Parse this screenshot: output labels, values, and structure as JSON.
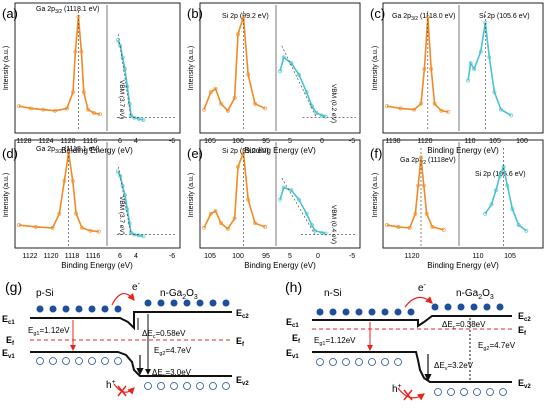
{
  "chart_data": [
    {
      "type": "line",
      "panel": "(a)",
      "xlabel": "Binding Energy (eV)",
      "ylabel": "Intensity (a.u.)",
      "segments": [
        {
          "xlim": [
            1128,
            1114
          ],
          "ticks": [
            1128,
            1124,
            1120,
            1116
          ],
          "peak_label": "Ga 2p3/2 (1118.1 eV)",
          "peak_x": 1118.1,
          "data": [
            [
              1128,
              0.18
            ],
            [
              1126,
              0.16
            ],
            [
              1124,
              0.15
            ],
            [
              1122,
              0.14
            ],
            [
              1120,
              0.16
            ],
            [
              1119,
              0.3
            ],
            [
              1118.6,
              0.65
            ],
            [
              1118.1,
              0.95
            ],
            [
              1117.6,
              0.65
            ],
            [
              1117.2,
              0.3
            ],
            [
              1116.5,
              0.15
            ],
            [
              1115.5,
              0.12
            ],
            [
              1114.5,
              0.11
            ]
          ]
        },
        {
          "xlim": [
            8,
            -6
          ],
          "ticks": [
            6,
            4,
            2,
            0,
            -2,
            -4,
            -6
          ],
          "shown_ticks": [
            "6",
            "4",
            "-6"
          ],
          "vbm_label": "VBM (3.7 eV)",
          "vbm_x": 3.7,
          "data": [
            [
              6.5,
              0.75
            ],
            [
              6,
              0.7
            ],
            [
              5.5,
              0.6
            ],
            [
              5,
              0.5
            ],
            [
              4.5,
              0.35
            ],
            [
              4,
              0.2
            ],
            [
              3.7,
              0.1
            ],
            [
              3,
              0.08
            ],
            [
              2,
              0.07
            ],
            [
              1,
              0.06
            ]
          ]
        }
      ]
    },
    {
      "type": "line",
      "panel": "(b)",
      "xlabel": "Binding Energy (eV)",
      "ylabel": "Intensity (a.u.)",
      "segments": [
        {
          "xlim": [
            105,
            95
          ],
          "ticks": [
            105,
            100,
            95
          ],
          "peak_label": "Si 2p (99.2 eV)",
          "peak_x": 99.2,
          "data": [
            [
              105,
              0.15
            ],
            [
              104,
              0.3
            ],
            [
              103.3,
              0.33
            ],
            [
              102.5,
              0.2
            ],
            [
              101.5,
              0.14
            ],
            [
              100.5,
              0.25
            ],
            [
              100,
              0.8
            ],
            [
              99.2,
              0.95
            ],
            [
              98.5,
              0.45
            ],
            [
              97.5,
              0.2
            ],
            [
              96,
              0.16
            ]
          ]
        },
        {
          "xlim": [
            5,
            -5
          ],
          "ticks": [
            5,
            0,
            -5
          ],
          "vbm_label": "VBM (0.2 eV)",
          "vbm_x": 0.2,
          "data": [
            [
              5,
              0.48
            ],
            [
              4.5,
              0.6
            ],
            [
              3.5,
              0.55
            ],
            [
              2.5,
              0.45
            ],
            [
              1.5,
              0.3
            ],
            [
              0.8,
              0.18
            ],
            [
              0.2,
              0.12
            ],
            [
              -0.5,
              0.1
            ],
            [
              -1,
              0.09
            ]
          ]
        }
      ]
    },
    {
      "type": "line",
      "panel": "(c)",
      "xlabel": "Binding Energy (eV)",
      "ylabel": "Intensity (a.u.)",
      "segments": [
        {
          "xlim": [
            1130,
            1110
          ],
          "ticks": [
            1130,
            1120
          ],
          "peak_label": "Ga 2p3/2 (1118.0 eV)",
          "peak_x": 1118.0,
          "data": [
            [
              1130,
              0.18
            ],
            [
              1126,
              0.16
            ],
            [
              1122,
              0.15
            ],
            [
              1120,
              0.2
            ],
            [
              1119,
              0.5
            ],
            [
              1118,
              0.95
            ],
            [
              1117,
              0.5
            ],
            [
              1116,
              0.2
            ],
            [
              1114,
              0.14
            ],
            [
              1112,
              0.13
            ]
          ]
        },
        {
          "xlim": [
            110,
            95
          ],
          "ticks": [
            110,
            105,
            100
          ],
          "peak_label": "Si 2p (105.6 eV)",
          "peak_x": 105.6,
          "data": [
            [
              109,
              0.4
            ],
            [
              108.5,
              0.55
            ],
            [
              107.8,
              0.5
            ],
            [
              106.5,
              0.65
            ],
            [
              105.6,
              0.9
            ],
            [
              104.8,
              0.6
            ],
            [
              103.8,
              0.3
            ],
            [
              102.5,
              0.15
            ],
            [
              100.5,
              0.1
            ]
          ]
        }
      ]
    },
    {
      "type": "line",
      "panel": "(d)",
      "xlabel": "Binding Energy (eV)",
      "ylabel": "Intensity (a.u.)",
      "segments": [
        {
          "xlim": [
            1124,
            1114
          ],
          "ticks": [
            1122,
            1120,
            1118,
            1116
          ],
          "peak_label": "Ga 2p3/2 (1118.1 eV)",
          "peak_x": 1118.1,
          "data": [
            [
              1124,
              0.18
            ],
            [
              1122,
              0.16
            ],
            [
              1120,
              0.15
            ],
            [
              1119.2,
              0.3
            ],
            [
              1118.6,
              0.65
            ],
            [
              1118.1,
              0.95
            ],
            [
              1117.6,
              0.65
            ],
            [
              1117.2,
              0.3
            ],
            [
              1116.5,
              0.15
            ],
            [
              1115.5,
              0.12
            ],
            [
              1114.5,
              0.11
            ]
          ]
        },
        {
          "xlim": [
            8,
            -6
          ],
          "ticks": [
            6,
            4,
            2,
            0,
            -2,
            -4,
            -6
          ],
          "shown_ticks": [
            "6",
            "4",
            "-6"
          ],
          "vbm_label": "VBM (3.7 eV)",
          "vbm_x": 3.7,
          "data": [
            [
              6.5,
              0.75
            ],
            [
              6,
              0.7
            ],
            [
              5.5,
              0.6
            ],
            [
              5,
              0.5
            ],
            [
              4.5,
              0.35
            ],
            [
              4,
              0.2
            ],
            [
              3.7,
              0.1
            ],
            [
              3,
              0.08
            ],
            [
              2,
              0.07
            ],
            [
              1,
              0.06
            ]
          ]
        }
      ]
    },
    {
      "type": "line",
      "panel": "(e)",
      "xlabel": "Binding Energy (eV)",
      "ylabel": "Intensity (a.u.)",
      "segments": [
        {
          "xlim": [
            105,
            95
          ],
          "ticks": [
            105,
            100,
            95
          ],
          "peak_label": "Si 2p (99.2 eV)",
          "peak_x": 99.2,
          "data": [
            [
              105,
              0.15
            ],
            [
              104,
              0.3
            ],
            [
              103.3,
              0.33
            ],
            [
              102.5,
              0.2
            ],
            [
              101.5,
              0.14
            ],
            [
              100.5,
              0.25
            ],
            [
              100,
              0.8
            ],
            [
              99.2,
              0.95
            ],
            [
              98.5,
              0.45
            ],
            [
              97.5,
              0.2
            ],
            [
              96,
              0.16
            ]
          ]
        },
        {
          "xlim": [
            5,
            -5
          ],
          "ticks": [
            5,
            0,
            -5
          ],
          "vbm_label": "VBM (0.4 eV)",
          "vbm_x": 0.4,
          "data": [
            [
              5,
              0.45
            ],
            [
              4.5,
              0.58
            ],
            [
              3.5,
              0.55
            ],
            [
              2.5,
              0.45
            ],
            [
              1.5,
              0.3
            ],
            [
              0.8,
              0.18
            ],
            [
              0.4,
              0.12
            ],
            [
              -0.5,
              0.1
            ],
            [
              -1,
              0.09
            ]
          ]
        }
      ]
    },
    {
      "type": "line",
      "panel": "(f)",
      "xlabel": "Binding Energy (eV)",
      "ylabel": "Intensity (a.u.)",
      "segments": [
        {
          "xlim": [
            1124,
            1112
          ],
          "ticks": [
            1120
          ],
          "peak_label": "Ga 2p3/2 (1118eV)",
          "peak_x": 1118,
          "data": [
            [
              1124,
              0.18
            ],
            [
              1122,
              0.16
            ],
            [
              1120,
              0.15
            ],
            [
              1119,
              0.3
            ],
            [
              1118.5,
              0.6
            ],
            [
              1118,
              0.9
            ],
            [
              1117.5,
              0.6
            ],
            [
              1117,
              0.3
            ],
            [
              1116,
              0.16
            ],
            [
              1114,
              0.13
            ]
          ]
        },
        {
          "xlim": [
            112,
            100
          ],
          "ticks": [
            110,
            105
          ],
          "peak_label": "Si 2p (105.6 eV)",
          "peak_x": 105.6,
          "data": [
            [
              108.5,
              0.3
            ],
            [
              107.5,
              0.4
            ],
            [
              106.8,
              0.55
            ],
            [
              106.2,
              0.7
            ],
            [
              105.6,
              0.8
            ],
            [
              105,
              0.6
            ],
            [
              104.2,
              0.35
            ],
            [
              103.2,
              0.18
            ],
            [
              102,
              0.12
            ]
          ]
        }
      ]
    }
  ],
  "panels": {
    "a": {
      "tag": "(a)",
      "ga": "Ga 2p",
      "ga_sub": "3/2",
      "ga_val": " (1118.1 eV)",
      "vbm": "VBM (3.7 eV)",
      "xlabel": "Binding Energy (eV)",
      "ylabel": "Intensity (a.u.)",
      "ticks": [
        "1128",
        "1124",
        "1120",
        "1116",
        "6",
        "4",
        "-6"
      ]
    },
    "b": {
      "tag": "(b)",
      "si": "Si 2p (99.2 eV)",
      "vbm": "VBM (0.2 eV)",
      "xlabel": "Binding Energy (eV)",
      "ylabel": "Intensity (a.u.)",
      "ticks": [
        "105",
        "100",
        "95",
        "5",
        "0",
        "-5"
      ]
    },
    "c": {
      "tag": "(c)",
      "ga": "Ga 2p",
      "ga_sub": "3/2",
      "ga_val": " (1118.0 eV)",
      "si": "Si 2p (105.6 eV)",
      "xlabel": "Binding Energy (eV)",
      "ylabel": "Intensity (a.u.)",
      "ticks": [
        "1130",
        "1120",
        "110",
        "105",
        "100"
      ]
    },
    "d": {
      "tag": "(d)",
      "ga": "Ga 2p",
      "ga_sub": "3/2",
      "ga_val": " (1118.1 eV)",
      "vbm": "VBM (3.7 eV)",
      "xlabel": "Binding Energy (eV)",
      "ylabel": "Intensity (a.u.)",
      "ticks": [
        "1122",
        "1120",
        "1118",
        "1116",
        "6",
        "4",
        "-6"
      ]
    },
    "e": {
      "tag": "(e)",
      "si": "Si 2p (99.2 eV)",
      "vbm": "VBM (0.4 eV)",
      "xlabel": "Binding Energy (eV)",
      "ylabel": "Intensity (a.u.)",
      "ticks": [
        "105",
        "100",
        "95",
        "5",
        "0",
        "-5"
      ]
    },
    "f": {
      "tag": "(f)",
      "ga": "Ga 2p",
      "ga_sub": "3/2",
      "ga_val": " (1118eV)",
      "si": "Si 2p (105.6 eV)",
      "xlabel": "Binding Energy (eV)",
      "ylabel": "Intensity (a.u.)",
      "ticks": [
        "1120",
        "110",
        "105"
      ]
    }
  },
  "band_g": {
    "tag": "(g)",
    "left": "p-Si",
    "right_pre": "n-Ga",
    "right_sub1": "2",
    "right_mid": "O",
    "right_sub2": "3",
    "ec1": "E",
    "ec1_sub": "c1",
    "ec2": "E",
    "ec2_sub": "c2",
    "ef_left": "E",
    "ef_sub": "f",
    "ev1": "E",
    "ev1_sub": "v1",
    "ev2": "E",
    "ev2_sub": "v2",
    "eg1": "E",
    "eg1_sub": "g1",
    "eg1_val": "=1.12eV",
    "eg2": "E",
    "eg2_sub": "g2",
    "eg2_val": "=4.7eV",
    "dec": "ΔE",
    "dec_sub": "c",
    "dec_val": "=0.58eV",
    "dev": "ΔE",
    "dev_sub": "v",
    "dev_val": "=3.0eV",
    "electron": "e",
    "electron_sup": "-",
    "hole": "h",
    "hole_sup": "+"
  },
  "band_h": {
    "tag": "(h)",
    "left": "n-Si",
    "right_pre": "n-Ga",
    "right_sub1": "2",
    "right_mid": "O",
    "right_sub2": "3",
    "ec1": "E",
    "ec1_sub": "c1",
    "ec2": "E",
    "ec2_sub": "c2",
    "ef_left": "E",
    "ef_sub": "f",
    "ev1": "E",
    "ev1_sub": "v1",
    "ev2": "E",
    "ev2_sub": "v2",
    "eg1": "E",
    "eg1_sub": "g1",
    "eg1_val": "=1.12eV",
    "eg2": "E",
    "eg2_sub": "g2",
    "eg2_val": "=4.7eV",
    "dec": "ΔE",
    "dec_sub": "c",
    "dec_val": "=0.38eV",
    "dev": "ΔE",
    "dev_sub": "v",
    "dev_val": "=3.2eV",
    "electron": "e",
    "electron_sup": "-",
    "hole": "h",
    "hole_sup": "+"
  },
  "colors": {
    "orange": "#f08a24",
    "cyan": "#48c3cf",
    "blue": "#1f4e9a",
    "red": "#e8241c",
    "axis": "#222222"
  }
}
